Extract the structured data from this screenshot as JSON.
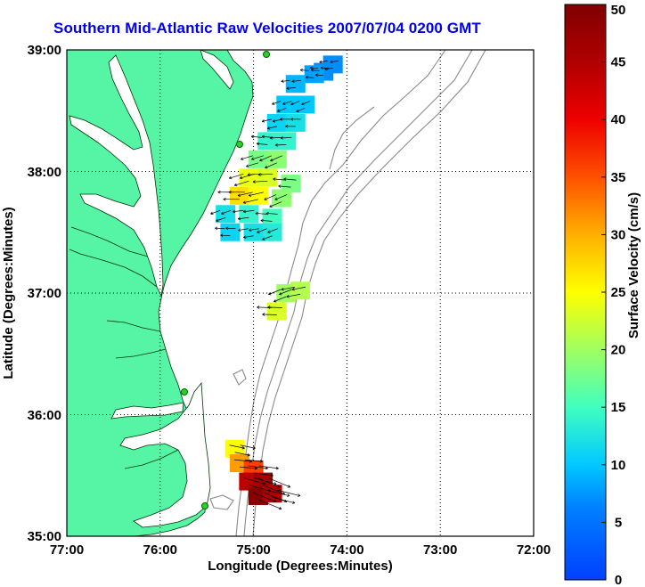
{
  "title": "Southern Mid-Atlantic Raw Velocities 2007/07/04 0200 GMT",
  "map": {
    "lon_range": [
      -77,
      -72
    ],
    "lat_range": [
      35,
      39
    ],
    "x_ticks": [
      "77:00",
      "76:00",
      "75:00",
      "74:00",
      "73:00",
      "72:00"
    ],
    "y_ticks": [
      "39:00",
      "38:00",
      "37:00",
      "36:00",
      "35:00"
    ],
    "xlabel": "Longitude (Degrees:Minutes)",
    "ylabel": "Latitude (Degrees:Minutes)",
    "land_color": "#55f5a5",
    "grid": "dotted"
  },
  "colorbar": {
    "label": "Surface Velocity (cm/s)",
    "min": 0,
    "max": 50,
    "ticks": [
      "0",
      "5",
      "10",
      "15",
      "20",
      "25",
      "30",
      "35",
      "40",
      "45",
      "50"
    ]
  },
  "chart_data": {
    "type": "vector-field",
    "units": "cm/s",
    "cells": [
      {
        "lon": -74.15,
        "lat": 38.88,
        "speed": 7
      },
      {
        "lon": -74.25,
        "lat": 38.82,
        "speed": 7
      },
      {
        "lon": -74.35,
        "lat": 38.8,
        "speed": 8
      },
      {
        "lon": -74.55,
        "lat": 38.72,
        "speed": 9
      },
      {
        "lon": -74.65,
        "lat": 38.55,
        "speed": 10
      },
      {
        "lon": -74.45,
        "lat": 38.55,
        "speed": 10
      },
      {
        "lon": -74.75,
        "lat": 38.4,
        "speed": 11
      },
      {
        "lon": -74.55,
        "lat": 38.4,
        "speed": 12
      },
      {
        "lon": -74.85,
        "lat": 38.25,
        "speed": 14
      },
      {
        "lon": -74.65,
        "lat": 38.25,
        "speed": 14
      },
      {
        "lon": -74.95,
        "lat": 38.1,
        "speed": 18
      },
      {
        "lon": -74.75,
        "lat": 38.1,
        "speed": 19
      },
      {
        "lon": -75.05,
        "lat": 37.95,
        "speed": 24
      },
      {
        "lon": -74.85,
        "lat": 37.95,
        "speed": 23
      },
      {
        "lon": -74.6,
        "lat": 37.9,
        "speed": 18
      },
      {
        "lon": -75.15,
        "lat": 37.8,
        "speed": 27
      },
      {
        "lon": -74.95,
        "lat": 37.8,
        "speed": 25
      },
      {
        "lon": -74.7,
        "lat": 37.78,
        "speed": 19
      },
      {
        "lon": -75.3,
        "lat": 37.65,
        "speed": 12
      },
      {
        "lon": -75.05,
        "lat": 37.65,
        "speed": 14
      },
      {
        "lon": -74.8,
        "lat": 37.62,
        "speed": 15
      },
      {
        "lon": -75.25,
        "lat": 37.5,
        "speed": 11
      },
      {
        "lon": -75.0,
        "lat": 37.5,
        "speed": 12
      },
      {
        "lon": -74.8,
        "lat": 37.5,
        "speed": 13
      },
      {
        "lon": -74.65,
        "lat": 37.0,
        "speed": 20
      },
      {
        "lon": -74.5,
        "lat": 37.02,
        "speed": 21
      },
      {
        "lon": -74.75,
        "lat": 36.85,
        "speed": 23
      },
      {
        "lon": -75.2,
        "lat": 35.72,
        "speed": 25
      },
      {
        "lon": -75.15,
        "lat": 35.6,
        "speed": 31
      },
      {
        "lon": -75.0,
        "lat": 35.55,
        "speed": 36
      },
      {
        "lon": -75.05,
        "lat": 35.45,
        "speed": 44
      },
      {
        "lon": -74.9,
        "lat": 35.45,
        "speed": 46
      },
      {
        "lon": -74.95,
        "lat": 35.33,
        "speed": 49
      },
      {
        "lon": -74.8,
        "lat": 35.35,
        "speed": 45
      }
    ]
  }
}
